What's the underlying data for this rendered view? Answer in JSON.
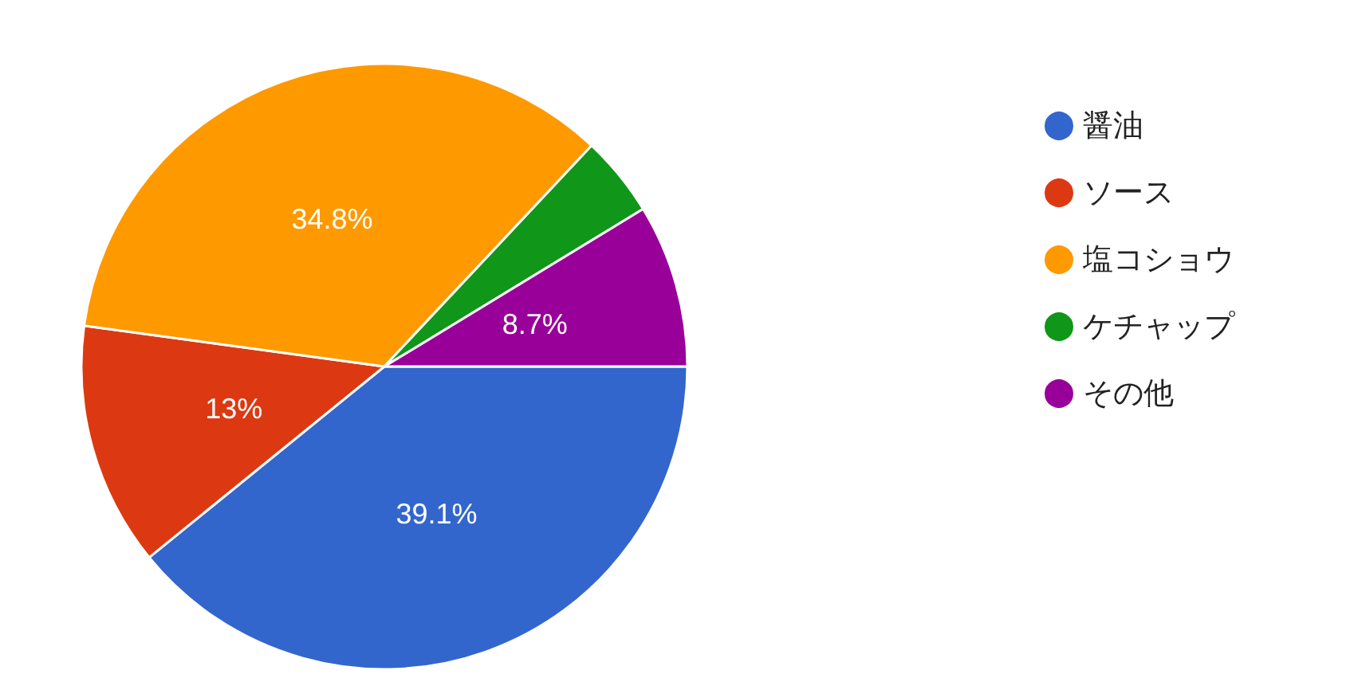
{
  "chart_data": {
    "type": "pie",
    "categories": [
      "醤油",
      "ソース",
      "塩コショウ",
      "ケチャップ",
      "その他"
    ],
    "values": [
      39.1,
      13,
      34.8,
      4.3,
      8.7
    ],
    "colors": [
      "#3366cc",
      "#dc3912",
      "#ff9900",
      "#109618",
      "#990099"
    ],
    "value_labels": [
      "39.1%",
      "13%",
      "34.8%",
      null,
      "8.7%"
    ],
    "legend": "right"
  }
}
